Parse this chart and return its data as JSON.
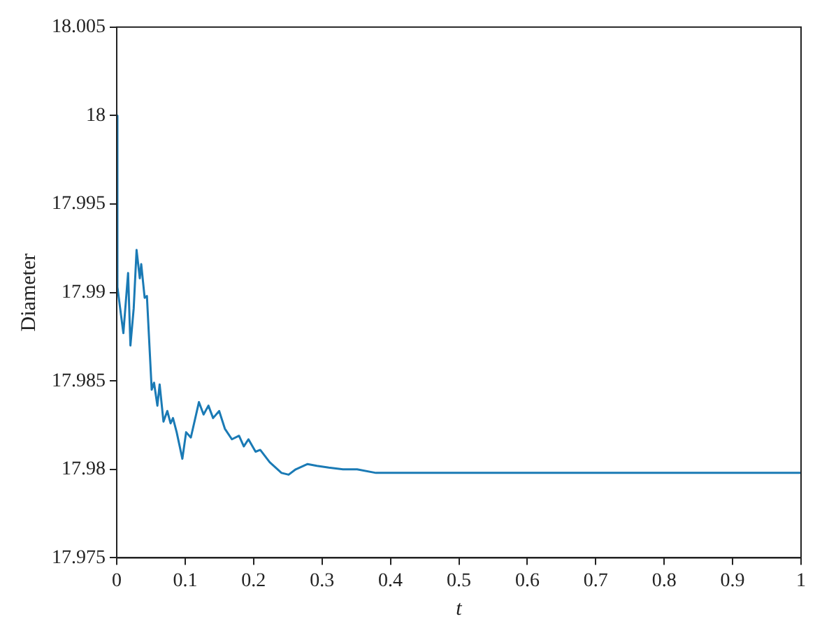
{
  "chart_data": {
    "type": "line",
    "xlabel": "t",
    "ylabel": "Diameter",
    "x": [
      0,
      0.001,
      0.0097,
      0.0166,
      0.02,
      0.0248,
      0.029,
      0.0337,
      0.0358,
      0.0408,
      0.0441,
      0.0511,
      0.0545,
      0.0594,
      0.0627,
      0.0683,
      0.0739,
      0.0787,
      0.0822,
      0.0876,
      0.0959,
      0.1014,
      0.1083,
      0.1201,
      0.1269,
      0.134,
      0.1408,
      0.1497,
      0.158,
      0.1683,
      0.1787,
      0.1857,
      0.1925,
      0.2029,
      0.2097,
      0.2236,
      0.2408,
      0.2512,
      0.2615,
      0.2789,
      0.2925,
      0.3099,
      0.3306,
      0.3513,
      0.3789,
      0.5,
      0.6,
      0.7,
      0.8,
      0.9,
      1
    ],
    "series": [
      {
        "color": "#1a7ab5",
        "values": [
          18.0,
          17.9903,
          17.9877,
          17.9911,
          17.987,
          17.9891,
          17.9924,
          17.9908,
          17.9916,
          17.9897,
          17.9898,
          17.9845,
          17.9849,
          17.9836,
          17.9848,
          17.9827,
          17.9833,
          17.9826,
          17.9829,
          17.9821,
          17.9806,
          17.9821,
          17.9818,
          17.9838,
          17.9831,
          17.9836,
          17.9829,
          17.9833,
          17.9823,
          17.9817,
          17.9819,
          17.9813,
          17.9817,
          17.981,
          17.9811,
          17.9804,
          17.9798,
          17.9797,
          17.98,
          17.9803,
          17.9802,
          17.9801,
          17.98,
          17.98,
          17.9798,
          17.9798,
          17.9798,
          17.9798,
          17.9798,
          17.9798,
          17.9798
        ]
      }
    ],
    "xlim": [
      0,
      1
    ],
    "xticks": [
      0,
      0.1,
      0.2,
      0.3,
      0.4,
      0.5,
      0.6,
      0.7,
      0.8,
      0.9,
      1
    ],
    "ylim": [
      17.975,
      18.005
    ],
    "yticks": [
      17.975,
      17.98,
      17.985,
      17.99,
      17.995,
      18,
      18.005
    ],
    "grid": false,
    "legend": false,
    "marker": "none",
    "line_style": "solid"
  }
}
